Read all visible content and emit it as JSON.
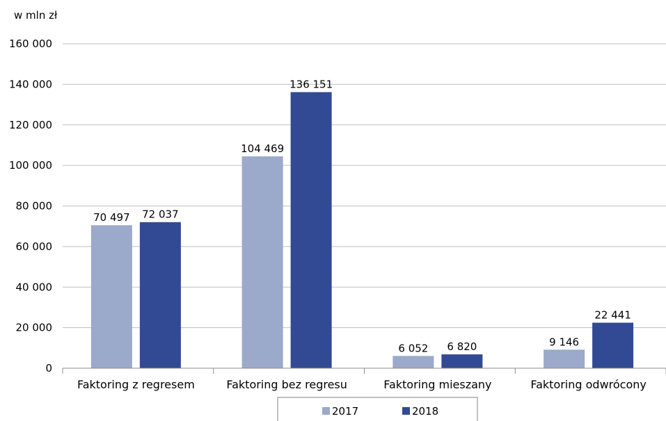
{
  "chart_data": {
    "type": "bar",
    "unit_label": "w mln zł",
    "categories": [
      "Faktoring z regresem",
      "Faktoring bez regresu",
      "Faktoring mieszany",
      "Faktoring odwrócony"
    ],
    "series": [
      {
        "name": "2017",
        "color": "#9ba9cb",
        "values": [
          70497,
          104469,
          6052,
          9146
        ],
        "labels": [
          "70 497",
          "104 469",
          "6 052",
          "9 146"
        ]
      },
      {
        "name": "2018",
        "color": "#324a94",
        "values": [
          72037,
          136151,
          6820,
          22441
        ],
        "labels": [
          "72 037",
          "136 151",
          "6 820",
          "22 441"
        ]
      }
    ],
    "ylim": [
      0,
      160000
    ],
    "yticks": [
      0,
      20000,
      40000,
      60000,
      80000,
      100000,
      120000,
      140000,
      160000
    ],
    "ytick_labels": [
      "0",
      "20 000",
      "40 000",
      "60 000",
      "80 000",
      "100 000",
      "120 000",
      "140 000",
      "160 000"
    ],
    "grid": true,
    "legend": "bottom-center"
  }
}
